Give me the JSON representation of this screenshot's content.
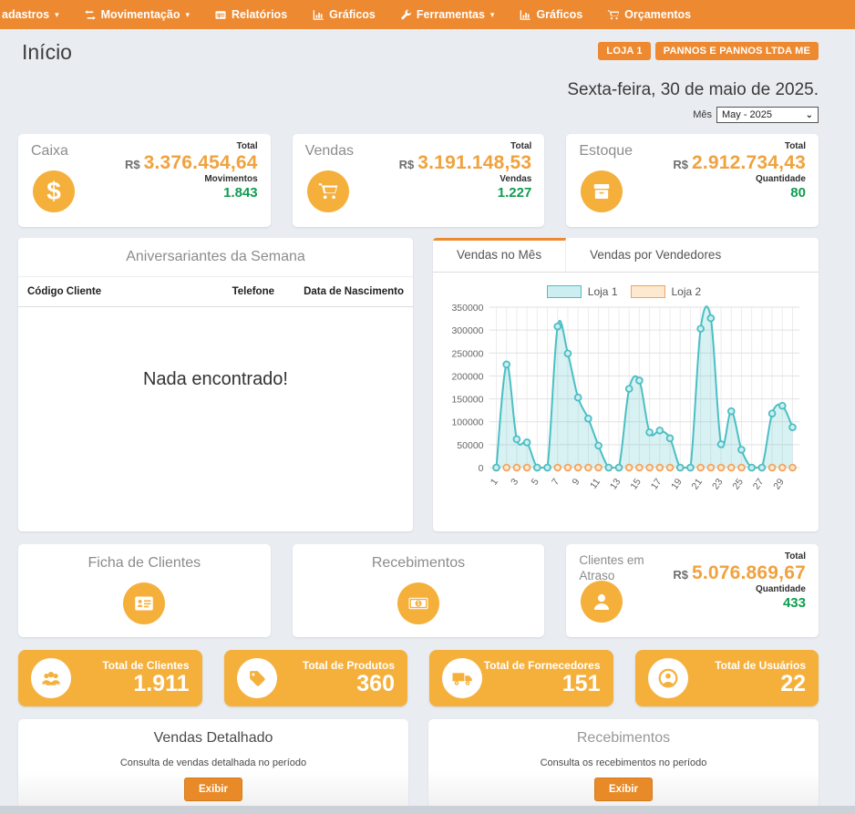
{
  "colors": {
    "navbar_orange": "#ed8a31",
    "icon_orange": "#f5b03c",
    "value_orange": "#f0a23e",
    "count_green": "#0e9d4e"
  },
  "navbar": {
    "items": [
      {
        "label": "adastros",
        "caret": "▾"
      },
      {
        "label": "Movimentação",
        "caret": "▾"
      },
      {
        "label": "Relatórios",
        "caret": ""
      },
      {
        "label": "Gráficos",
        "caret": ""
      },
      {
        "label": "Ferramentas",
        "caret": "▾"
      },
      {
        "label": "Gráficos",
        "caret": ""
      },
      {
        "label": "Orçamentos",
        "caret": ""
      }
    ]
  },
  "header": {
    "title": "Início",
    "store_badge": "LOJA 1",
    "company_badge": "PANNOS E PANNOS LTDA ME",
    "date": "Sexta-feira, 30 de maio de 2025.",
    "month_label": "Mês",
    "month_value": "May - 2025"
  },
  "summary_cards": [
    {
      "title": "Caixa",
      "total_label": "Total",
      "currency": "R$",
      "total": "3.376.454,64",
      "count_label": "Movimentos",
      "count": "1.843"
    },
    {
      "title": "Vendas",
      "total_label": "Total",
      "currency": "R$",
      "total": "3.191.148,53",
      "count_label": "Vendas",
      "count": "1.227"
    },
    {
      "title": "Estoque",
      "total_label": "Total",
      "currency": "R$",
      "total": "2.912.734,43",
      "count_label": "Quantidade",
      "count": "80"
    }
  ],
  "birthdays": {
    "title": "Aniversariantes da Semana",
    "columns": [
      "Código Cliente",
      "Telefone",
      "Data de Nascimento"
    ],
    "empty_message": "Nada encontrado!"
  },
  "sales_panel": {
    "tabs": [
      "Vendas no Mês",
      "Vendas por Vendedores"
    ]
  },
  "chart_data": {
    "type": "area",
    "x": [
      1,
      2,
      3,
      4,
      5,
      6,
      7,
      8,
      9,
      10,
      11,
      12,
      13,
      14,
      15,
      16,
      17,
      18,
      19,
      20,
      21,
      22,
      23,
      24,
      25,
      26,
      27,
      28,
      29,
      30
    ],
    "series": [
      {
        "name": "Loja 1",
        "color": "#4bbfc4",
        "fill": "#cdeef0",
        "area_fill": "rgba(77,190,196,0.22)",
        "values": [
          0,
          225000,
          62000,
          55000,
          0,
          0,
          308000,
          249000,
          153000,
          107000,
          48000,
          0,
          0,
          172000,
          190000,
          77000,
          81000,
          64000,
          0,
          0,
          303000,
          326000,
          51000,
          123000,
          39000,
          0,
          0,
          118000,
          135000,
          88000
        ]
      },
      {
        "name": "Loja 2",
        "color": "#f2a35e",
        "fill": "#fde9cf",
        "values": [
          0,
          0,
          0,
          0,
          0,
          0,
          0,
          0,
          0,
          0,
          0,
          0,
          0,
          0,
          0,
          0,
          0,
          0,
          0,
          0,
          0,
          0,
          0,
          0,
          0,
          0,
          0,
          0,
          0,
          0
        ]
      }
    ],
    "ylim": [
      0,
      350000
    ],
    "ytick_step": 50000,
    "xlabel_every": 2,
    "grid": true,
    "legend_position": "top"
  },
  "feature_cards": [
    {
      "title": "Ficha de Clientes"
    },
    {
      "title": "Recebimentos"
    }
  ],
  "overdue_card": {
    "title": "Clientes em Atraso",
    "total_label": "Total",
    "currency": "R$",
    "total": "5.076.869,67",
    "count_label": "Quantidade",
    "count": "433"
  },
  "stat_cards": [
    {
      "label": "Total de Clientes",
      "value": "1.911"
    },
    {
      "label": "Total de Produtos",
      "value": "360"
    },
    {
      "label": "Total de Fornecedores",
      "value": "151"
    },
    {
      "label": "Total de Usuários",
      "value": "22"
    }
  ],
  "report_cards": [
    {
      "title": "Vendas Detalhado",
      "description": "Consulta de vendas detalhada no período",
      "button": "Exibir"
    },
    {
      "title": "Recebimentos",
      "description": "Consulta os recebimentos no período",
      "button": "Exibir"
    }
  ]
}
